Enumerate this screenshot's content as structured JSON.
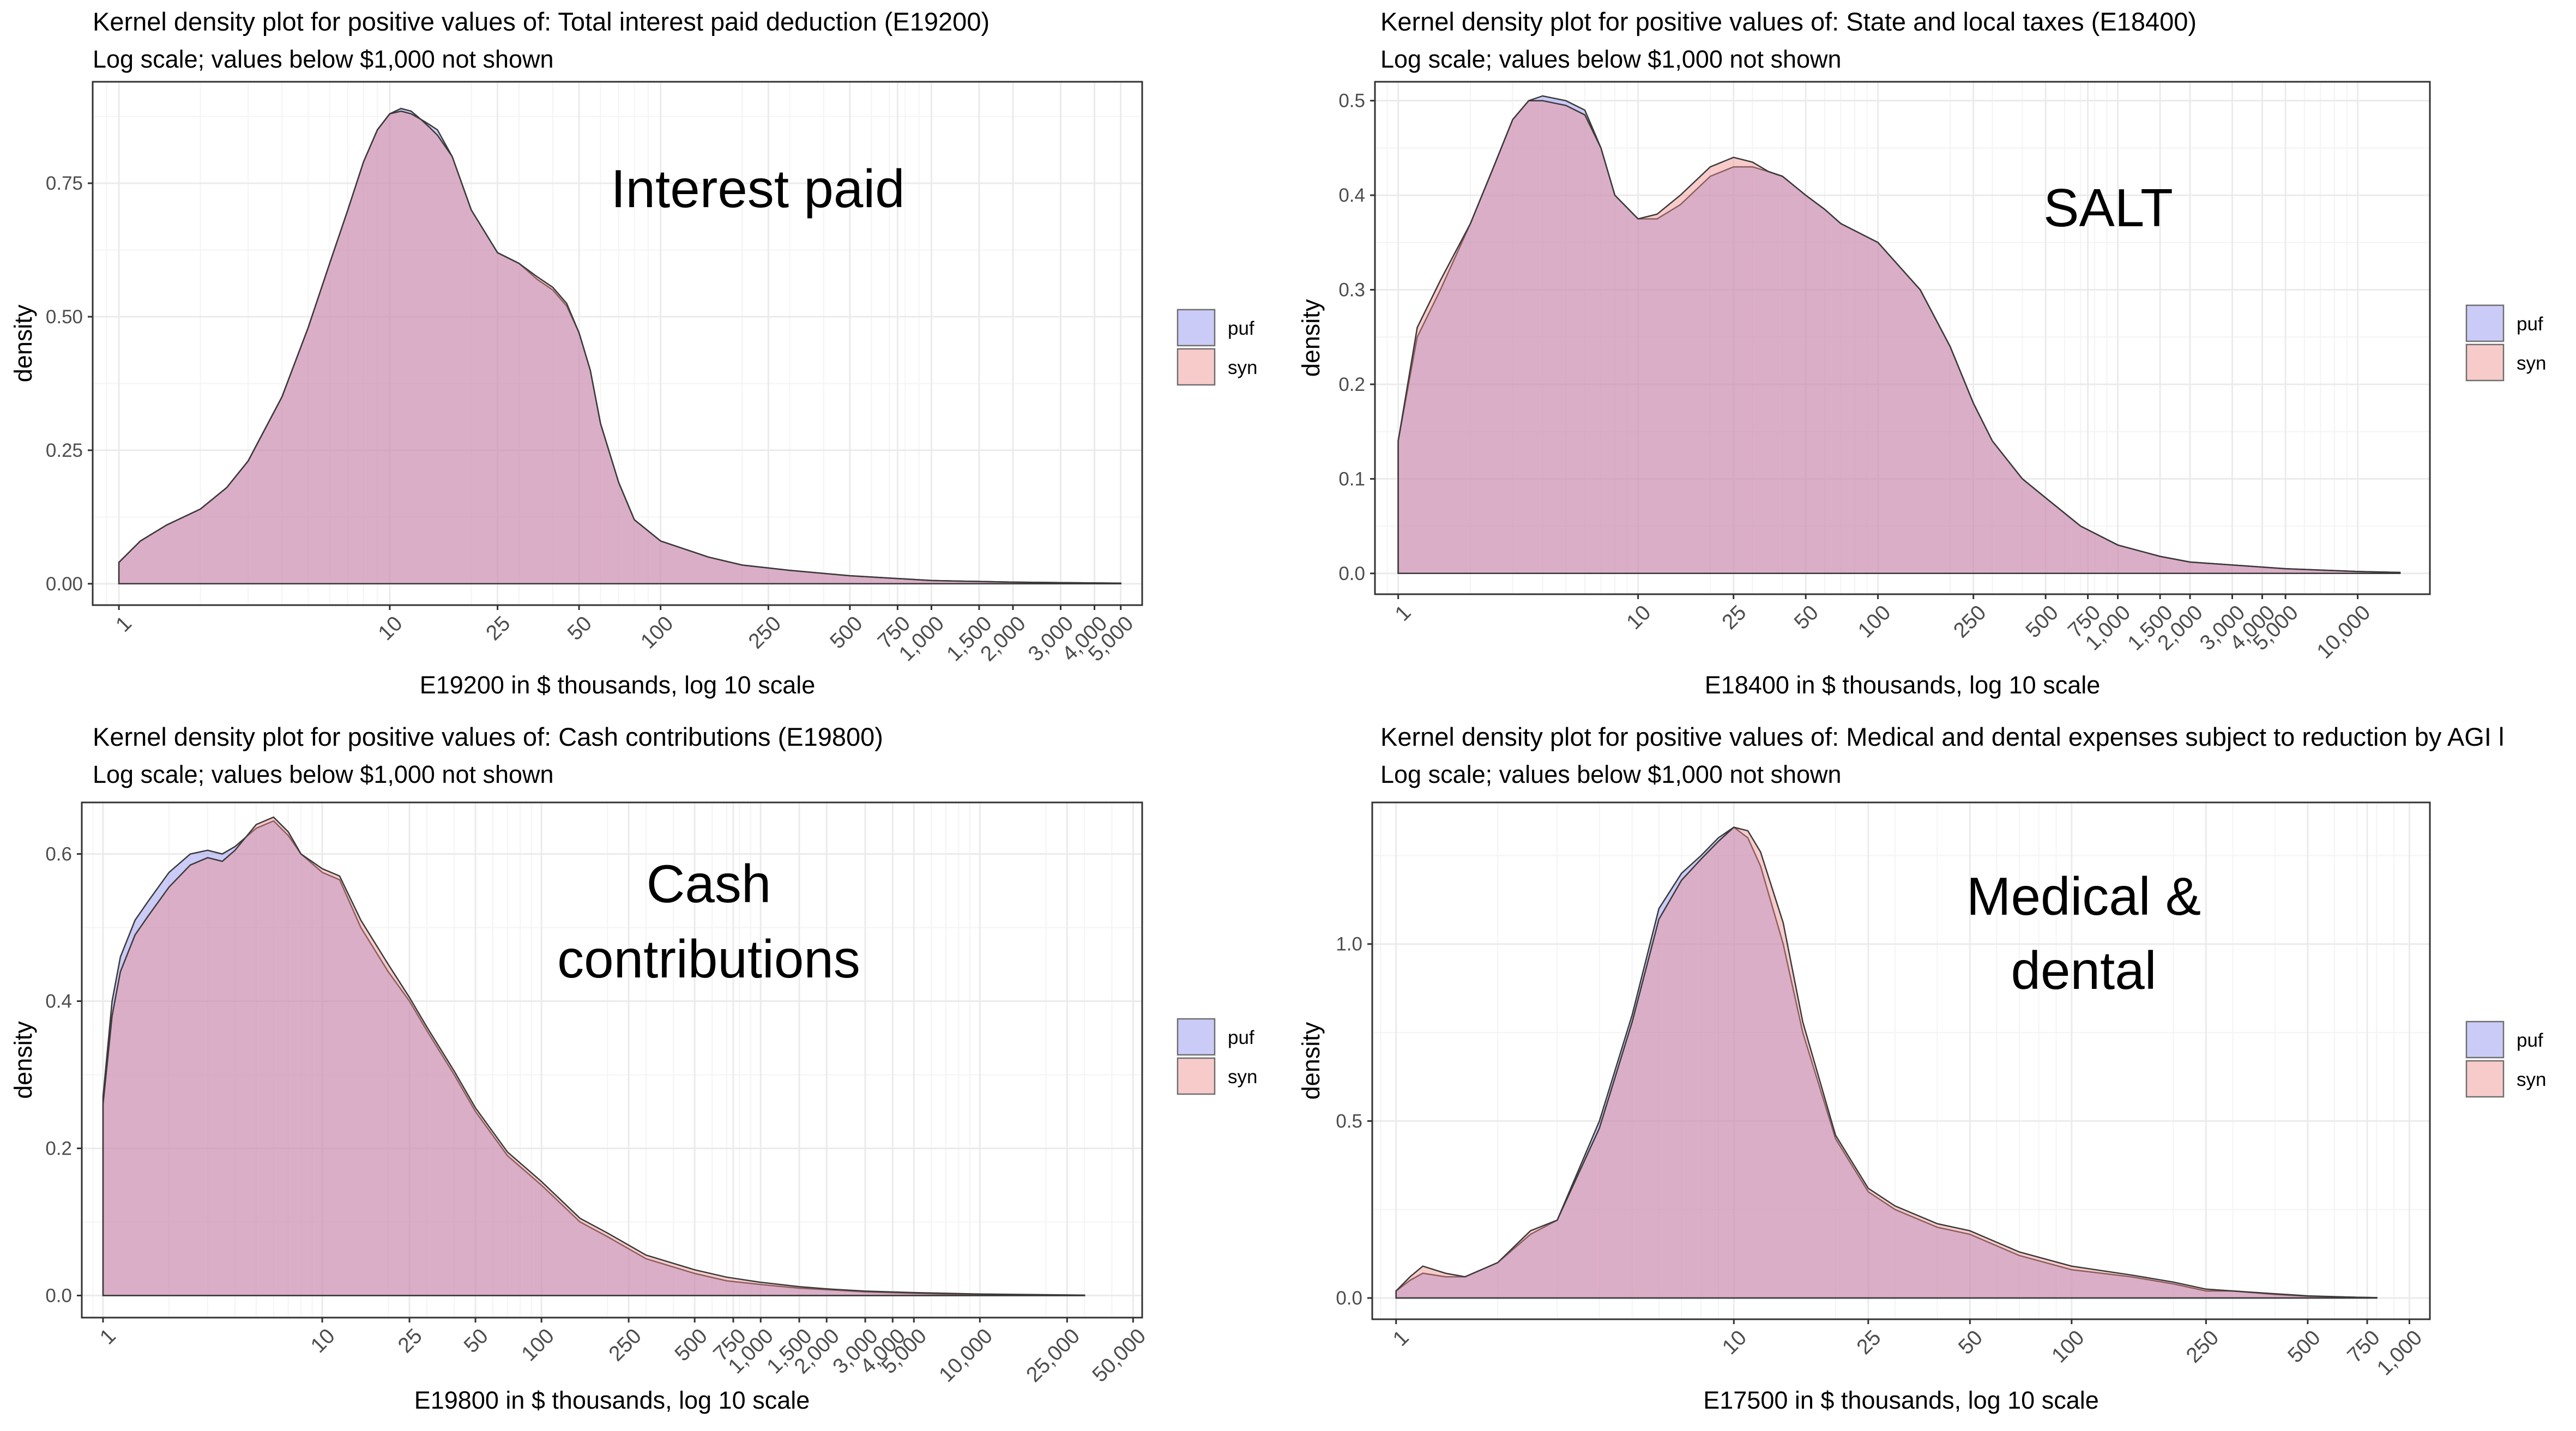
{
  "legend": [
    "puf",
    "syn"
  ],
  "colors": {
    "puf_fill": "#8b8bf0",
    "syn_fill": "#f08b8b",
    "overlap_fill": "#c68ec3",
    "grid_major": "#ebebeb",
    "grid_minor": "#f4f4f4",
    "panel_border": "#333333"
  },
  "chart_data": [
    {
      "type": "area",
      "title": "Kernel density plot for positive values of: Total interest paid deduction (E19200)",
      "subtitle": "Log scale; values below $1,000 not shown",
      "annotation": [
        "Interest paid"
      ],
      "xlabel": "E19200 in $ thousands, log 10 scale",
      "ylabel": "density",
      "x_scale": "log10",
      "x_breaks": [
        1,
        10,
        25,
        50,
        100,
        250,
        500,
        750,
        1000,
        1500,
        2000,
        3000,
        4000,
        5000
      ],
      "x_break_labels": [
        "1",
        "10",
        "25",
        "50",
        "100",
        "250",
        "500",
        "750",
        "1,000",
        "1,500",
        "2,000",
        "3,000",
        "4,000",
        "5,000"
      ],
      "y_breaks": [
        0.0,
        0.25,
        0.5,
        0.75
      ],
      "y_break_labels": [
        "0.00",
        "0.25",
        "0.50",
        "0.75"
      ],
      "xlim": [
        0.8,
        6000
      ],
      "ylim": [
        -0.04,
        0.94
      ],
      "legend_position": "right",
      "grid": true,
      "series": [
        {
          "name": "puf",
          "x": [
            1,
            1.2,
            1.5,
            2,
            2.5,
            3,
            4,
            5,
            6,
            7,
            8,
            9,
            10,
            11,
            12,
            13,
            14,
            15,
            17,
            20,
            25,
            30,
            35,
            40,
            45,
            50,
            55,
            60,
            70,
            80,
            100,
            150,
            200,
            300,
            500,
            1000,
            2000,
            5000
          ],
          "y": [
            0.04,
            0.08,
            0.11,
            0.14,
            0.18,
            0.23,
            0.35,
            0.48,
            0.6,
            0.7,
            0.79,
            0.85,
            0.88,
            0.89,
            0.885,
            0.87,
            0.86,
            0.85,
            0.8,
            0.7,
            0.62,
            0.6,
            0.57,
            0.55,
            0.52,
            0.47,
            0.4,
            0.3,
            0.19,
            0.12,
            0.08,
            0.05,
            0.035,
            0.025,
            0.015,
            0.006,
            0.003,
            0.001
          ]
        },
        {
          "name": "syn",
          "x": [
            1,
            1.2,
            1.5,
            2,
            2.5,
            3,
            4,
            5,
            6,
            7,
            8,
            9,
            10,
            11,
            12,
            13,
            14,
            15,
            17,
            20,
            25,
            30,
            35,
            40,
            45,
            50,
            55,
            60,
            70,
            80,
            100,
            150,
            200,
            300,
            500,
            1000,
            2000,
            5000
          ],
          "y": [
            0.04,
            0.08,
            0.11,
            0.14,
            0.18,
            0.23,
            0.35,
            0.48,
            0.6,
            0.7,
            0.79,
            0.85,
            0.88,
            0.885,
            0.88,
            0.87,
            0.855,
            0.84,
            0.8,
            0.7,
            0.62,
            0.6,
            0.575,
            0.555,
            0.525,
            0.47,
            0.4,
            0.3,
            0.19,
            0.12,
            0.08,
            0.05,
            0.035,
            0.025,
            0.015,
            0.006,
            0.003,
            0.001
          ]
        }
      ]
    },
    {
      "type": "area",
      "title": "Kernel density plot for positive values of: State and local taxes (E18400)",
      "subtitle": "Log scale; values below $1,000 not shown",
      "annotation": [
        "SALT"
      ],
      "xlabel": "E18400 in $ thousands, log 10 scale",
      "ylabel": "density",
      "x_scale": "log10",
      "x_breaks": [
        1,
        10,
        25,
        50,
        100,
        250,
        500,
        750,
        1000,
        1500,
        2000,
        3000,
        4000,
        5000,
        10000
      ],
      "x_break_labels": [
        "1",
        "10",
        "25",
        "50",
        "100",
        "250",
        "500",
        "750",
        "1,000",
        "1,500",
        "2,000",
        "3,000",
        "4,000",
        "5,000",
        "10,000"
      ],
      "y_breaks": [
        0.0,
        0.1,
        0.2,
        0.3,
        0.4,
        0.5
      ],
      "y_break_labels": [
        "0.0",
        "0.1",
        "0.2",
        "0.3",
        "0.4",
        "0.5"
      ],
      "xlim": [
        0.8,
        20000
      ],
      "ylim": [
        -0.022,
        0.52
      ],
      "legend_position": "right",
      "grid": true,
      "series": [
        {
          "name": "puf",
          "x": [
            1,
            1.2,
            1.5,
            2,
            2.5,
            3,
            3.5,
            4,
            5,
            6,
            7,
            8,
            10,
            12,
            15,
            20,
            25,
            30,
            35,
            40,
            50,
            60,
            70,
            100,
            150,
            200,
            250,
            300,
            400,
            500,
            700,
            1000,
            1500,
            2000,
            5000,
            10000,
            15000
          ],
          "y": [
            0.14,
            0.25,
            0.3,
            0.37,
            0.43,
            0.48,
            0.5,
            0.505,
            0.5,
            0.49,
            0.45,
            0.4,
            0.375,
            0.375,
            0.39,
            0.42,
            0.43,
            0.43,
            0.425,
            0.42,
            0.4,
            0.385,
            0.37,
            0.35,
            0.3,
            0.24,
            0.18,
            0.14,
            0.1,
            0.08,
            0.05,
            0.03,
            0.018,
            0.012,
            0.005,
            0.002,
            0.001
          ]
        },
        {
          "name": "syn",
          "x": [
            1,
            1.2,
            1.5,
            2,
            2.5,
            3,
            3.5,
            4,
            5,
            6,
            7,
            8,
            10,
            12,
            15,
            20,
            25,
            30,
            35,
            40,
            50,
            60,
            70,
            100,
            150,
            200,
            250,
            300,
            400,
            500,
            700,
            1000,
            1500,
            2000,
            5000,
            10000,
            15000
          ],
          "y": [
            0.14,
            0.26,
            0.31,
            0.37,
            0.43,
            0.48,
            0.5,
            0.5,
            0.495,
            0.485,
            0.45,
            0.4,
            0.375,
            0.38,
            0.4,
            0.43,
            0.44,
            0.435,
            0.425,
            0.42,
            0.4,
            0.385,
            0.37,
            0.35,
            0.3,
            0.24,
            0.18,
            0.14,
            0.1,
            0.08,
            0.05,
            0.03,
            0.018,
            0.012,
            0.005,
            0.002,
            0.001
          ]
        }
      ]
    },
    {
      "type": "area",
      "title": "Kernel density plot for positive values of: Cash contributions (E19800)",
      "subtitle": "Log scale; values below $1,000 not shown",
      "annotation": [
        "Cash",
        "contributions"
      ],
      "xlabel": "E19800 in $ thousands, log 10 scale",
      "ylabel": "density",
      "x_scale": "log10",
      "x_breaks": [
        1,
        10,
        25,
        50,
        100,
        250,
        500,
        750,
        1000,
        1500,
        2000,
        3000,
        4000,
        5000,
        10000,
        25000,
        50000
      ],
      "x_break_labels": [
        "1",
        "10",
        "25",
        "50",
        "100",
        "250",
        "500",
        "750",
        "1,000",
        "1,500",
        "2,000",
        "3,000",
        "4,000",
        "5,000",
        "10,000",
        "25,000",
        "50,000"
      ],
      "y_breaks": [
        0.0,
        0.2,
        0.4,
        0.6
      ],
      "y_break_labels": [
        "0.0",
        "0.2",
        "0.4",
        "0.6"
      ],
      "xlim": [
        0.8,
        55000
      ],
      "ylim": [
        -0.03,
        0.67
      ],
      "legend_position": "right",
      "grid": true,
      "series": [
        {
          "name": "puf",
          "x": [
            1,
            1.1,
            1.2,
            1.4,
            1.6,
            2,
            2.5,
            3,
            3.5,
            4,
            5,
            6,
            7,
            8,
            10,
            12,
            15,
            20,
            25,
            30,
            40,
            50,
            70,
            100,
            150,
            200,
            300,
            500,
            700,
            1000,
            1500,
            2000,
            3000,
            5000,
            10000,
            30000
          ],
          "y": [
            0.27,
            0.4,
            0.46,
            0.51,
            0.535,
            0.575,
            0.6,
            0.605,
            0.6,
            0.61,
            0.635,
            0.645,
            0.625,
            0.6,
            0.575,
            0.565,
            0.5,
            0.44,
            0.4,
            0.36,
            0.3,
            0.25,
            0.19,
            0.15,
            0.1,
            0.08,
            0.05,
            0.03,
            0.02,
            0.015,
            0.01,
            0.008,
            0.005,
            0.003,
            0.001,
            0.0005
          ]
        },
        {
          "name": "syn",
          "x": [
            1,
            1.1,
            1.2,
            1.4,
            1.6,
            2,
            2.5,
            3,
            3.5,
            4,
            5,
            6,
            7,
            8,
            10,
            12,
            15,
            20,
            25,
            30,
            40,
            50,
            70,
            100,
            150,
            200,
            300,
            500,
            700,
            1000,
            1500,
            2000,
            3000,
            5000,
            10000,
            30000
          ],
          "y": [
            0.26,
            0.38,
            0.44,
            0.49,
            0.515,
            0.555,
            0.585,
            0.595,
            0.59,
            0.605,
            0.64,
            0.65,
            0.63,
            0.6,
            0.58,
            0.57,
            0.51,
            0.45,
            0.405,
            0.365,
            0.305,
            0.255,
            0.195,
            0.155,
            0.105,
            0.085,
            0.055,
            0.035,
            0.025,
            0.018,
            0.012,
            0.009,
            0.006,
            0.004,
            0.002,
            0.0005
          ]
        }
      ]
    },
    {
      "type": "area",
      "title": "Kernel density plot for positive values of: Medical and dental expenses subject to reduction by AGI l",
      "subtitle": "Log scale; values below $1,000 not shown",
      "annotation": [
        "Medical &",
        "dental"
      ],
      "xlabel": "E17500 in $ thousands, log 10 scale",
      "ylabel": "density",
      "x_scale": "log10",
      "x_breaks": [
        1,
        10,
        25,
        50,
        100,
        250,
        500,
        750,
        1000
      ],
      "x_break_labels": [
        "1",
        "10",
        "25",
        "50",
        "100",
        "250",
        "500",
        "750",
        "1,000"
      ],
      "y_breaks": [
        0.0,
        0.5,
        1.0
      ],
      "y_break_labels": [
        "0.0",
        "0.5",
        "1.0"
      ],
      "xlim": [
        0.85,
        1150
      ],
      "ylim": [
        -0.06,
        1.4
      ],
      "legend_position": "right",
      "grid": true,
      "series": [
        {
          "name": "puf",
          "x": [
            1,
            1.1,
            1.2,
            1.4,
            1.6,
            2,
            2.5,
            3,
            4,
            5,
            6,
            7,
            8,
            9,
            10,
            11,
            12,
            14,
            16,
            20,
            25,
            30,
            40,
            50,
            70,
            100,
            150,
            200,
            250,
            300,
            400,
            500,
            700,
            800
          ],
          "y": [
            0.02,
            0.05,
            0.07,
            0.06,
            0.06,
            0.1,
            0.18,
            0.22,
            0.5,
            0.8,
            1.1,
            1.2,
            1.25,
            1.3,
            1.33,
            1.3,
            1.22,
            1.0,
            0.75,
            0.45,
            0.3,
            0.25,
            0.2,
            0.18,
            0.12,
            0.08,
            0.06,
            0.04,
            0.02,
            0.02,
            0.01,
            0.005,
            0.002,
            0.001
          ]
        },
        {
          "name": "syn",
          "x": [
            1,
            1.1,
            1.2,
            1.4,
            1.6,
            2,
            2.5,
            3,
            4,
            5,
            6,
            7,
            8,
            9,
            10,
            11,
            12,
            14,
            16,
            20,
            25,
            30,
            40,
            50,
            70,
            100,
            150,
            200,
            250,
            300,
            400,
            500,
            700,
            800
          ],
          "y": [
            0.02,
            0.06,
            0.09,
            0.07,
            0.06,
            0.1,
            0.19,
            0.22,
            0.48,
            0.78,
            1.07,
            1.18,
            1.24,
            1.29,
            1.33,
            1.32,
            1.26,
            1.06,
            0.78,
            0.46,
            0.31,
            0.26,
            0.21,
            0.19,
            0.13,
            0.09,
            0.065,
            0.045,
            0.025,
            0.02,
            0.012,
            0.006,
            0.002,
            0.001
          ]
        }
      ]
    }
  ]
}
